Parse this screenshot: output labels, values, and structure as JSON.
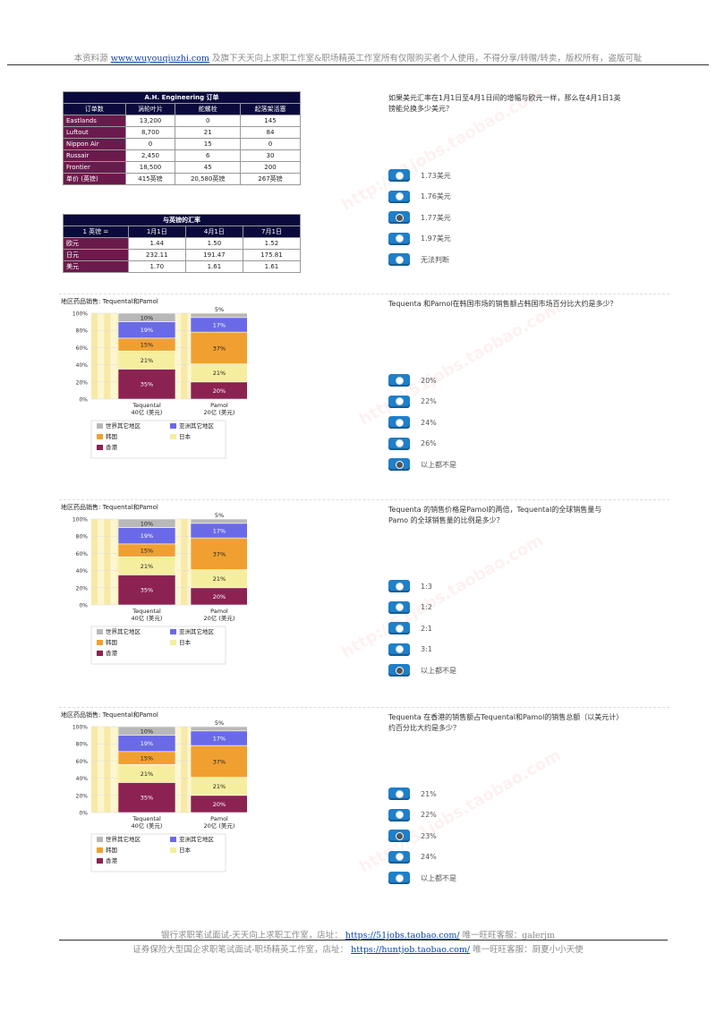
{
  "header": {
    "prefix": "本资料源",
    "link": "www.wuyouqiuzhi.com",
    "suffix": "及旗下天天向上求职工作室&职场精英工作室所有仅限购买者个人使用，不得分享/转赠/转卖，版权所有，盗版可耻"
  },
  "footer": {
    "line1_prefix": "银行求职笔试面试-天天向上求职工作室，店址：",
    "line1_link": "https://51jobs.taobao.com/",
    "line1_suffix": "唯一旺旺客服：galerjm",
    "line2_prefix": "证券保险大型国企求职笔试面试-职场精英工作室，店址：",
    "line2_link": "https://huntjob.taobao.com/",
    "line2_suffix": "唯一旺旺客服：厨夏小小天使"
  },
  "orders_table": {
    "title": "A.H. Engineering 订单",
    "headers": [
      "订单数",
      "涡轮叶片",
      "舵螺栓",
      "起落架活塞"
    ],
    "rows": [
      [
        "Eastlands",
        "13,200",
        "0",
        "145"
      ],
      [
        "Luftout",
        "8,700",
        "21",
        "84"
      ],
      [
        "Nippon Air",
        "0",
        "15",
        "0"
      ],
      [
        "Russair",
        "2,450",
        "6",
        "30"
      ],
      [
        "Frontier",
        "18,500",
        "45",
        "200"
      ],
      [
        "单价 (英镑)",
        "415英镑",
        "20,580英镑",
        "267英镑"
      ]
    ]
  },
  "fx_table": {
    "title": "与英镑的汇率",
    "headers": [
      "1 英镑 =",
      "1月1日",
      "4月1日",
      "7月1日"
    ],
    "rows": [
      [
        "欧元",
        "1.44",
        "1.50",
        "1.52"
      ],
      [
        "日元",
        "232.11",
        "191.47",
        "175.81"
      ],
      [
        "美元",
        "1.70",
        "1.61",
        "1.61"
      ]
    ]
  },
  "chart_data": {
    "type": "bar",
    "title": "地区药品销售: Tequental和Pamol",
    "categories": [
      "Tequental\n40亿 (美元)",
      "Pamol\n20亿 (美元)"
    ],
    "category_names": [
      "Tequental",
      "Pamol"
    ],
    "category_totals": [
      "40亿 (美元)",
      "20亿 (美元)"
    ],
    "stacked": true,
    "y_ticks": [
      "100%",
      "80%",
      "60%",
      "40%",
      "20%",
      "0%"
    ],
    "ylim": [
      0,
      100
    ],
    "series": [
      {
        "name": "香港",
        "color": "#8b2252",
        "values": [
          35,
          20
        ]
      },
      {
        "name": "日本",
        "color": "#f5ee9e",
        "values": [
          21,
          21
        ]
      },
      {
        "name": "韩国",
        "color": "#f0a030",
        "values": [
          15,
          37
        ]
      },
      {
        "name": "亚洲其它地区",
        "color": "#6a6ae8",
        "values": [
          19,
          17
        ]
      },
      {
        "name": "世界其它地区",
        "color": "#b8b8b8",
        "values": [
          10,
          5
        ]
      }
    ],
    "legend": [
      "世界其它地区",
      "亚洲其它地区",
      "韩国",
      "日本",
      "香港"
    ],
    "legend_placement": "bottom"
  },
  "questions": [
    {
      "text": "如果美元汇率在1月1日至4月1日间的增幅与欧元一样，那么在4月1日1英镑能兑换多少美元？",
      "options": [
        "1.73美元",
        "1.76美元",
        "1.77美元",
        "1.97美元",
        "无法判断"
      ],
      "selected": 2
    },
    {
      "text": "Tequenta 和Pamol在韩国市场的销售额占韩国市场百分比大约是多少？",
      "options": [
        "20%",
        "22%",
        "24%",
        "26%",
        "以上都不是"
      ],
      "selected": 4
    },
    {
      "text": "Tequenta 的销售价格是Pamol的两倍，Tequental的全球销售量与Pamo 的全球销售量的比例是多少？",
      "options": [
        "1:3",
        "1:2",
        "2:1",
        "3:1",
        "以上都不是"
      ],
      "selected": 4
    },
    {
      "text": "Tequenta 在香港的销售额占Tequental和Pamol的销售总额（以美元计）约百分比大约是多少？",
      "options": [
        "21%",
        "22%",
        "23%",
        "24%",
        "以上都不是"
      ],
      "selected": 2
    }
  ],
  "colors": {
    "link": "#0645ad",
    "radio": "#1f7fc8",
    "table_dark": "#0a0a3c",
    "table_label": "#6b1a4d"
  }
}
